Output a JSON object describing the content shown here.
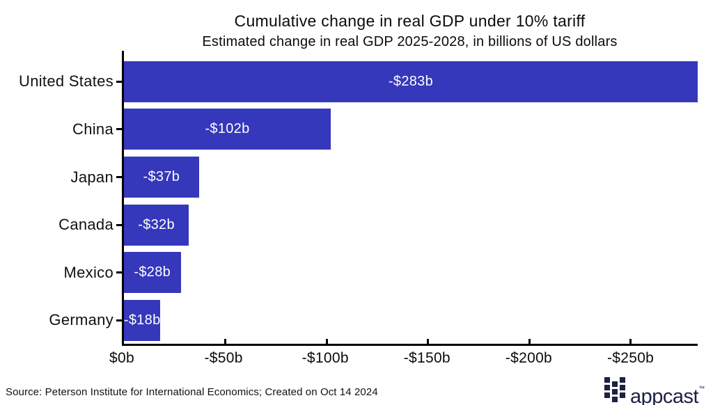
{
  "chart_data": {
    "type": "bar",
    "orientation": "horizontal",
    "title": "Cumulative change in real GDP under 10% tariff",
    "subtitle": "Estimated change in real GDP 2025-2028, in billions of US dollars",
    "categories": [
      "United States",
      "China",
      "Japan",
      "Canada",
      "Mexico",
      "Germany"
    ],
    "values": [
      -283,
      -102,
      -37,
      -32,
      -28,
      -18
    ],
    "bar_labels": [
      "-$283b",
      "-$102b",
      "-$37b",
      "-$32b",
      "-$28b",
      "-$18b"
    ],
    "x_axis": {
      "tick_values": [
        0,
        -50,
        -100,
        -150,
        -200,
        -250
      ],
      "tick_labels": [
        "$0b",
        "-$50b",
        "-$100b",
        "-$150b",
        "-$200b",
        "-$250b"
      ],
      "min": -283,
      "max": 0
    },
    "grid": false,
    "legend": false,
    "bar_color": "#3538ba",
    "bar_label_color": "#ffffff",
    "axis_color": "#000000",
    "text_color": "#0b0b0b"
  },
  "footer": {
    "source_text": "Source: Peterson Institute for International Economics; Created on Oct 14 2024"
  },
  "logo": {
    "text": "appcast",
    "trademark": "™",
    "color": "#1d2142",
    "icon": "appcast-grid-icon"
  }
}
